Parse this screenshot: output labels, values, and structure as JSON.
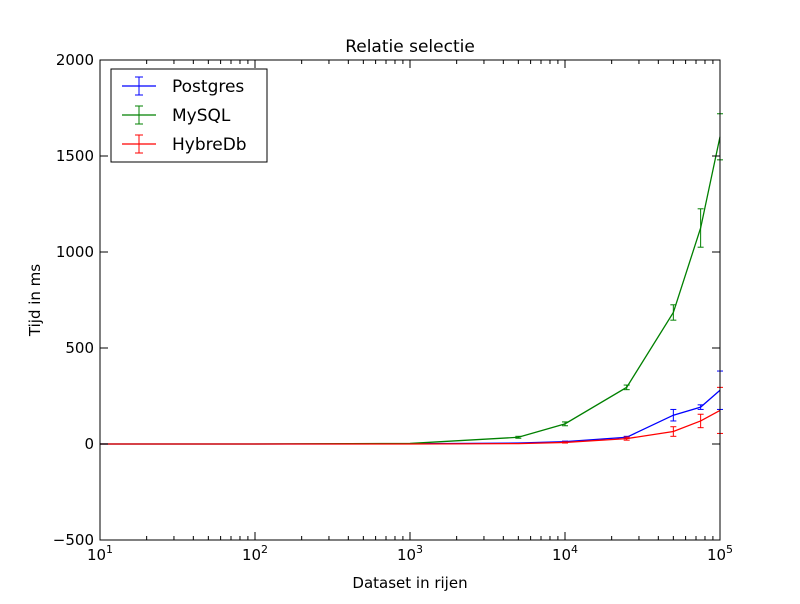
{
  "chart_data": {
    "type": "line",
    "title": "Relatie selectie",
    "xlabel": "Dataset in rijen",
    "ylabel": "Tijd in ms",
    "x_scale": "log",
    "xlim": [
      10,
      100000
    ],
    "ylim": [
      -500,
      2000
    ],
    "x_ticks": [
      {
        "value": 10,
        "base": "10",
        "exp": "1"
      },
      {
        "value": 100,
        "base": "10",
        "exp": "2"
      },
      {
        "value": 1000,
        "base": "10",
        "exp": "3"
      },
      {
        "value": 10000,
        "base": "10",
        "exp": "4"
      },
      {
        "value": 100000,
        "base": "10",
        "exp": "5"
      }
    ],
    "y_ticks": [
      {
        "value": -500,
        "label": "−500"
      },
      {
        "value": 0,
        "label": "0"
      },
      {
        "value": 500,
        "label": "500"
      },
      {
        "value": 1000,
        "label": "1000"
      },
      {
        "value": 1500,
        "label": "1500"
      },
      {
        "value": 2000,
        "label": "2000"
      }
    ],
    "grid": false,
    "legend_position": "top-left",
    "series": [
      {
        "name": "Postgres",
        "color": "#0000ff",
        "points": [
          {
            "x": 10,
            "y": 0,
            "err": 0
          },
          {
            "x": 100,
            "y": 0,
            "err": 0
          },
          {
            "x": 1000,
            "y": 1,
            "err": 0
          },
          {
            "x": 5000,
            "y": 5,
            "err": 0
          },
          {
            "x": 10000,
            "y": 12,
            "err": 3
          },
          {
            "x": 25000,
            "y": 35,
            "err": 5
          },
          {
            "x": 50000,
            "y": 150,
            "err": 30
          },
          {
            "x": 75000,
            "y": 192,
            "err": 12
          },
          {
            "x": 100000,
            "y": 280,
            "err": 100
          }
        ]
      },
      {
        "name": "MySQL",
        "color": "#008000",
        "points": [
          {
            "x": 10,
            "y": 0,
            "err": 0
          },
          {
            "x": 100,
            "y": 0,
            "err": 0
          },
          {
            "x": 1000,
            "y": 3,
            "err": 0
          },
          {
            "x": 5000,
            "y": 35,
            "err": 5
          },
          {
            "x": 10000,
            "y": 105,
            "err": 10
          },
          {
            "x": 25000,
            "y": 295,
            "err": 12
          },
          {
            "x": 50000,
            "y": 685,
            "err": 40
          },
          {
            "x": 75000,
            "y": 1125,
            "err": 100
          },
          {
            "x": 100000,
            "y": 1600,
            "err": 120
          }
        ]
      },
      {
        "name": "HybreDb",
        "color": "#ff0000",
        "points": [
          {
            "x": 10,
            "y": 0,
            "err": 0
          },
          {
            "x": 100,
            "y": 0,
            "err": 0
          },
          {
            "x": 1000,
            "y": 0,
            "err": 0
          },
          {
            "x": 5000,
            "y": 2,
            "err": 0
          },
          {
            "x": 10000,
            "y": 8,
            "err": 3
          },
          {
            "x": 25000,
            "y": 28,
            "err": 8
          },
          {
            "x": 50000,
            "y": 65,
            "err": 25
          },
          {
            "x": 75000,
            "y": 120,
            "err": 35
          },
          {
            "x": 100000,
            "y": 175,
            "err": 120
          }
        ]
      }
    ]
  }
}
